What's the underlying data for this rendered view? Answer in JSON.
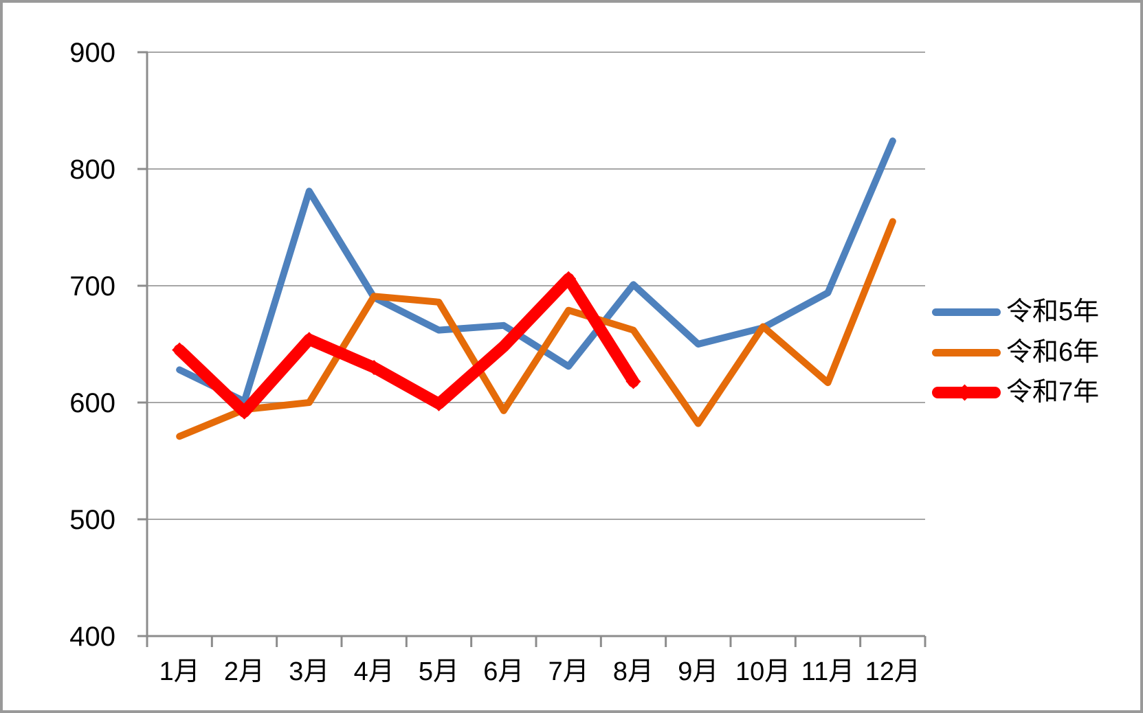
{
  "chart_data": {
    "type": "line",
    "categories": [
      "1月",
      "2月",
      "3月",
      "4月",
      "5月",
      "6月",
      "7月",
      "8月",
      "9月",
      "10月",
      "11月",
      "12月"
    ],
    "series": [
      {
        "name": "令和5年",
        "color": "#4E81BD",
        "line_width": 10,
        "marker": "none",
        "values": [
          628,
          601,
          781,
          690,
          662,
          666,
          631,
          701,
          650,
          664,
          694,
          824
        ]
      },
      {
        "name": "令和6年",
        "color": "#E56B09",
        "line_width": 10,
        "marker": "none",
        "values": [
          571,
          594,
          600,
          691,
          686,
          593,
          679,
          662,
          582,
          665,
          617,
          755
        ]
      },
      {
        "name": "令和7年",
        "color": "#FF0000",
        "line_width": 17,
        "marker": "diamond",
        "values": [
          645,
          592,
          654,
          630,
          599,
          648,
          706,
          618
        ]
      }
    ],
    "title": "",
    "xlabel": "",
    "ylabel": "",
    "ylim": [
      400,
      900
    ],
    "yticks": [
      400,
      500,
      600,
      700,
      800,
      900
    ],
    "grid": "horizontal",
    "legend_position": "right",
    "colors": {
      "grid_line": "#A6A6A6",
      "axis_line": "#8C8C8C",
      "tick_text": "#000000",
      "frame_border": "#999999",
      "background": "#FFFFFF"
    }
  },
  "legend": {
    "items": [
      {
        "label": "令和5年"
      },
      {
        "label": "令和6年"
      },
      {
        "label": "令和7年"
      }
    ]
  }
}
